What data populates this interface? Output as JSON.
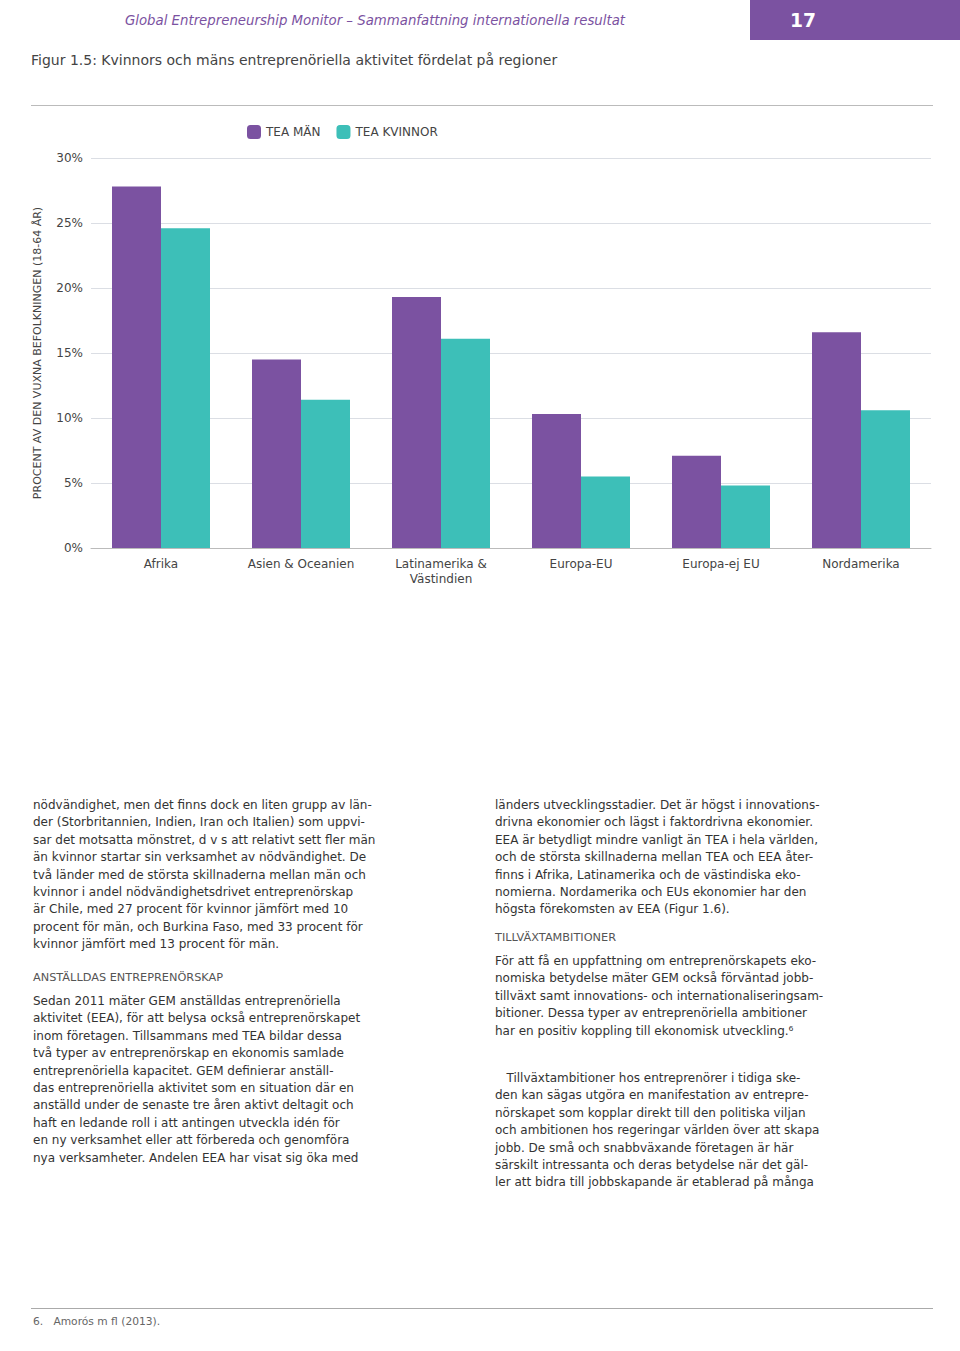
{
  "chart_data": {
    "type": "bar",
    "title": "Figur 1.5: Kvinnors och mäns entreprenöriella aktivitet fördelat på regioner",
    "categories": [
      "Afrika",
      "Asien & Oceanien",
      "Latinamerika &\nVästindien",
      "Europa-EU",
      "Europa-ej EU",
      "Nordamerika"
    ],
    "series": [
      {
        "name": "TEA MÄN",
        "color": "#7B52A1",
        "values": [
          27.8,
          14.5,
          19.3,
          10.3,
          7.1,
          16.6
        ]
      },
      {
        "name": "TEA KVINNOR",
        "color": "#3DBFB8",
        "values": [
          24.6,
          11.4,
          16.1,
          5.5,
          4.8,
          10.6
        ]
      }
    ],
    "ylabel": "PROCENT AV DEN VUXNA BEFOLKNINGEN (18-64 ÅR)",
    "ylim": [
      0,
      30
    ],
    "yticks": [
      {
        "value": 0,
        "label": "0%"
      },
      {
        "value": 5,
        "label": "5%"
      },
      {
        "value": 10,
        "label": "10%"
      },
      {
        "value": 15,
        "label": "15%"
      },
      {
        "value": 20,
        "label": "20%"
      },
      {
        "value": 25,
        "label": "25%"
      },
      {
        "value": 30,
        "label": "30%"
      }
    ],
    "grid": true,
    "legend": "upper left",
    "annotations": [
      "Global Entrepreneurship Monitor – Sammanfattning internationella resultat",
      "17",
      "nödvändighet, men det finns dock en liten grupp av län-\nder (Storbritannien, Indien, Iran och Italien) som uppvi-\nsar det motsatta mönstret, d v s att relativt sett fler män\nän kvinnor startar sin verksamhet av nödvändighet. De\ntvå länder med de största skillnaderna mellan män och\nkvinnor i andel nödvändighetsdrivet entreprenörskap\när Chile, med 27 procent för kvinnor jämfört med 10\nprocent för män, och Burkina Faso, med 33 procent för\nkvinnor jämfört med 13 procent för män.",
      "ANSTÄLLDAS ENTREPRENÖRSKAP",
      "Sedan 2011 mäter GEM anställdas entreprenöriella\naktivitet (EEA), för att belysa också entreprenörskapet\ninom företagen. Tillsammans med TEA bildar dessa\ntvå typer av entreprenörskap en ekonomis samlade\nentreprenöriella kapacitet. GEM definierar anställ-\ndas entreprenöriella aktivitet som en situation där en\nanställd under de senaste tre åren aktivt deltagit och\nhaft en ledande roll i att antingen utveckla idén för\nen ny verksamhet eller att förbereda och genomföra\nnya verksamheter. Andelen EEA har visat sig öka med",
      "länders utvecklingsstadier. Det är högst i innovations-\ndrivna ekonomier och lägst i faktordrivna ekonomier.\nEEA är betydligt mindre vanligt än TEA i hela världen,\noch de största skillnaderna mellan TEA och EEA åter-\nfinns i Afrika, Latinamerika och de västindiska eko-\nnomierna. Nordamerika och EUs ekonomier har den\nhögsta förekomsten av EEA (Figur 1.6).",
      "TILLVÄXTAMBITIONER",
      "För att få en uppfattning om entreprenörskapets eko-\nnomiska betydelse mäter GEM också förväntad jobb-\ntillväxt samt innovations- och internationaliseringsam-\nbitioner. Dessa typer av entreprenöriella ambitioner\nhar en positiv koppling till ekonomisk utveckling.⁶",
      "   Tillväxtambitioner hos entreprenörer i tidiga ske-\nden kan sägas utgöra en manifestation av entrepre-\nnörskapet som kopplar direkt till den politiska viljan\noch ambitionen hos regeringar världen över att skapa\njobb. De små och snabbväxande företagen är här\nsärskilt intressanta och deras betydelse när det gäl-\nler att bidra till jobbskapande är etablerad på många",
      "6.   Amorós m fl (2013)."
    ]
  }
}
